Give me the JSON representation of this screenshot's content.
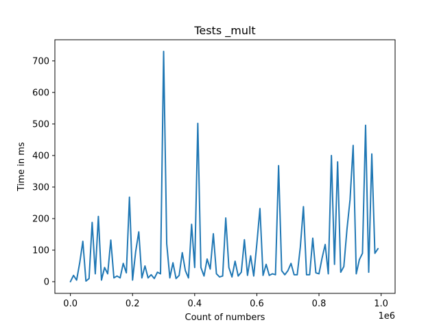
{
  "chart_data": {
    "type": "line",
    "title": "Tests _mult",
    "xlabel": "Count of numbers",
    "ylabel": "Time in ms",
    "x_offset_label": "1e6",
    "xlim": [
      -0.05,
      1.045
    ],
    "ylim": [
      -37,
      767
    ],
    "xticks": [
      0.0,
      0.2,
      0.4,
      0.6,
      0.8,
      1.0
    ],
    "xtick_labels": [
      "0.0",
      "0.2",
      "0.4",
      "0.6",
      "0.8",
      "1.0"
    ],
    "yticks": [
      0,
      100,
      200,
      300,
      400,
      500,
      600,
      700
    ],
    "ytick_labels": [
      "0",
      "100",
      "200",
      "300",
      "400",
      "500",
      "600",
      "700"
    ],
    "grid": false,
    "line_color": "#1f77b4",
    "series": [
      {
        "x": [
          0.0,
          0.01,
          0.02,
          0.03,
          0.04,
          0.05,
          0.06,
          0.07,
          0.08,
          0.09,
          0.1,
          0.11,
          0.12,
          0.13,
          0.14,
          0.15,
          0.16,
          0.17,
          0.18,
          0.19,
          0.2,
          0.21,
          0.22,
          0.23,
          0.24,
          0.25,
          0.26,
          0.27,
          0.28,
          0.29,
          0.3,
          0.31,
          0.32,
          0.33,
          0.34,
          0.35,
          0.36,
          0.37,
          0.38,
          0.39,
          0.4,
          0.41,
          0.42,
          0.43,
          0.44,
          0.45,
          0.46,
          0.47,
          0.48,
          0.49,
          0.5,
          0.51,
          0.52,
          0.53,
          0.54,
          0.55,
          0.56,
          0.57,
          0.58,
          0.59,
          0.6,
          0.61,
          0.62,
          0.63,
          0.64,
          0.65,
          0.66,
          0.67,
          0.68,
          0.69,
          0.7,
          0.71,
          0.72,
          0.73,
          0.74,
          0.75,
          0.76,
          0.77,
          0.78,
          0.79,
          0.8,
          0.81,
          0.82,
          0.83,
          0.84,
          0.85,
          0.86,
          0.87,
          0.88,
          0.89,
          0.9,
          0.91,
          0.92,
          0.93,
          0.94,
          0.95,
          0.96,
          0.97,
          0.98,
          0.99
        ],
        "y": [
          0,
          20,
          5,
          60,
          128,
          2,
          10,
          188,
          25,
          207,
          5,
          45,
          25,
          132,
          12,
          18,
          12,
          58,
          28,
          268,
          5,
          95,
          158,
          12,
          50,
          12,
          22,
          10,
          30,
          25,
          730,
          120,
          12,
          60,
          10,
          20,
          92,
          35,
          12,
          182,
          45,
          502,
          45,
          18,
          72,
          40,
          152,
          25,
          15,
          18,
          202,
          45,
          15,
          65,
          18,
          30,
          133,
          20,
          82,
          18,
          120,
          232,
          20,
          55,
          20,
          25,
          22,
          368,
          35,
          22,
          35,
          58,
          22,
          22,
          110,
          238,
          22,
          22,
          138,
          28,
          25,
          75,
          118,
          25,
          400,
          55,
          380,
          30,
          48,
          165,
          260,
          432,
          25,
          70,
          90,
          496,
          30,
          405,
          90,
          105
        ]
      }
    ]
  }
}
